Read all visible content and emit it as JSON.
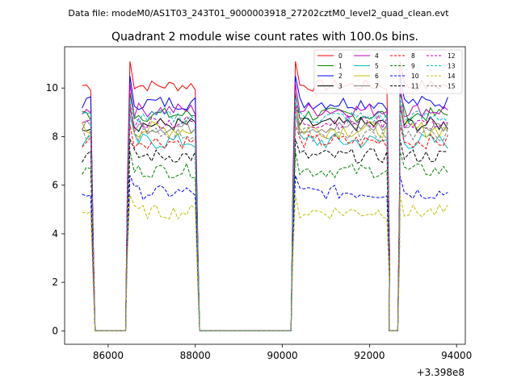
{
  "header": {
    "file_label": "Data file: modeM0/AS1T03_243T01_9000003918_27202cztM0_level2_quad_clean.evt"
  },
  "chart_data": {
    "type": "line",
    "title": "Quadrant 2 module wise count rates with 100.0s bins.",
    "xlabel": "",
    "ylabel": "",
    "x_offset_label": "+3.398e8",
    "xlim": [
      85000,
      94200
    ],
    "ylim": [
      -0.55,
      11.7
    ],
    "xticks": [
      86000,
      88000,
      90000,
      92000,
      94000
    ],
    "xtick_labels": [
      "86000",
      "88000",
      "90000",
      "92000",
      "94000"
    ],
    "yticks": [
      0,
      2,
      4,
      6,
      8,
      10
    ],
    "ytick_labels": [
      "0",
      "2",
      "4",
      "6",
      "8",
      "10"
    ],
    "grid": false,
    "legend_position": "top-right",
    "profile": {
      "gaps": [
        [
          85700,
          86400
        ],
        [
          88100,
          90200
        ],
        [
          92450,
          92650
        ]
      ],
      "segments": [
        [
          85400,
          85600
        ],
        [
          86500,
          88000
        ],
        [
          90300,
          92400
        ],
        [
          92700,
          93800
        ]
      ],
      "step": 100
    },
    "series": [
      {
        "name": "0",
        "color": "#ff0000",
        "dash": "solid",
        "level": 10.1,
        "spike": 11.1,
        "noise": 0.25
      },
      {
        "name": "1",
        "color": "#008000",
        "dash": "solid",
        "level": 8.9,
        "spike": 9.8,
        "noise": 0.3
      },
      {
        "name": "2",
        "color": "#0000ff",
        "dash": "solid",
        "level": 9.4,
        "spike": 10.5,
        "noise": 0.3
      },
      {
        "name": "3",
        "color": "#000000",
        "dash": "solid",
        "level": 8.5,
        "spike": 9.2,
        "noise": 0.3
      },
      {
        "name": "4",
        "color": "#bf00bf",
        "dash": "solid",
        "level": 9.1,
        "spike": 10.2,
        "noise": 0.3
      },
      {
        "name": "5",
        "color": "#00bfbf",
        "dash": "solid",
        "level": 7.8,
        "spike": 8.9,
        "noise": 0.35
      },
      {
        "name": "6",
        "color": "#bfbf00",
        "dash": "solid",
        "level": 8.3,
        "spike": 9.4,
        "noise": 0.35
      },
      {
        "name": "7",
        "color": "#7f7f7f",
        "dash": "solid",
        "level": 8.4,
        "spike": 9.3,
        "noise": 0.3
      },
      {
        "name": "8",
        "color": "#ff0000",
        "dash": "dashed",
        "level": 7.8,
        "spike": 8.5,
        "noise": 0.3
      },
      {
        "name": "9",
        "color": "#008000",
        "dash": "dashed",
        "level": 6.6,
        "spike": 7.4,
        "noise": 0.3
      },
      {
        "name": "10",
        "color": "#0000ff",
        "dash": "dashed",
        "level": 5.7,
        "spike": 6.4,
        "noise": 0.3
      },
      {
        "name": "11",
        "color": "#000000",
        "dash": "dashed",
        "level": 7.2,
        "spike": 7.9,
        "noise": 0.3
      },
      {
        "name": "12",
        "color": "#bf00bf",
        "dash": "dashed",
        "level": 8.6,
        "spike": 9.4,
        "noise": 0.3
      },
      {
        "name": "13",
        "color": "#00bfbf",
        "dash": "dashed",
        "level": 8.8,
        "spike": 9.6,
        "noise": 0.3
      },
      {
        "name": "14",
        "color": "#bfbf00",
        "dash": "dashed",
        "level": 4.9,
        "spike": 5.6,
        "noise": 0.3
      },
      {
        "name": "15",
        "color": "#7f7f7f",
        "dash": "dashed",
        "level": 8.1,
        "spike": 8.9,
        "noise": 0.3
      }
    ]
  }
}
